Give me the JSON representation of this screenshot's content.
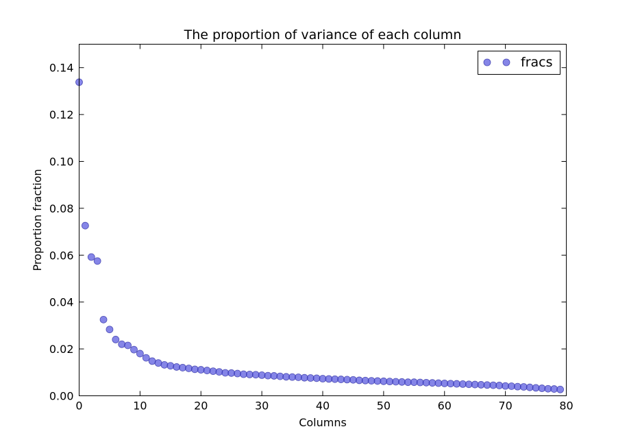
{
  "chart_data": {
    "type": "scatter",
    "title": "The proportion of variance of each column",
    "xlabel": "Columns",
    "ylabel": "Proportion fraction",
    "xlim": [
      0,
      80
    ],
    "ylim": [
      0,
      0.15
    ],
    "xticks": [
      0,
      10,
      20,
      30,
      40,
      50,
      60,
      70,
      80
    ],
    "yticks": [
      0.0,
      0.02,
      0.04,
      0.06,
      0.08,
      0.1,
      0.12,
      0.14
    ],
    "xtick_labels": [
      "0",
      "10",
      "20",
      "30",
      "40",
      "50",
      "60",
      "70",
      "80"
    ],
    "ytick_labels": [
      "0.00",
      "0.02",
      "0.04",
      "0.06",
      "0.08",
      "0.10",
      "0.12",
      "0.14"
    ],
    "grid": false,
    "legend_position": "top-right",
    "series": [
      {
        "name": "fracs",
        "color": "#4b4bdc",
        "x": [
          0,
          1,
          2,
          3,
          4,
          5,
          6,
          7,
          8,
          9,
          10,
          11,
          12,
          13,
          14,
          15,
          16,
          17,
          18,
          19,
          20,
          21,
          22,
          23,
          24,
          25,
          26,
          27,
          28,
          29,
          30,
          31,
          32,
          33,
          34,
          35,
          36,
          37,
          38,
          39,
          40,
          41,
          42,
          43,
          44,
          45,
          46,
          47,
          48,
          49,
          50,
          51,
          52,
          53,
          54,
          55,
          56,
          57,
          58,
          59,
          60,
          61,
          62,
          63,
          64,
          65,
          66,
          67,
          68,
          69,
          70,
          71,
          72,
          73,
          74,
          75,
          76,
          77,
          78,
          79
        ],
        "y": [
          0.1338,
          0.0726,
          0.0592,
          0.0575,
          0.0325,
          0.0283,
          0.024,
          0.022,
          0.0215,
          0.0197,
          0.018,
          0.0162,
          0.0148,
          0.014,
          0.0132,
          0.0128,
          0.0123,
          0.012,
          0.0117,
          0.0113,
          0.0111,
          0.0108,
          0.0105,
          0.0102,
          0.0098,
          0.0097,
          0.0095,
          0.0092,
          0.0091,
          0.009,
          0.0088,
          0.0086,
          0.0085,
          0.0083,
          0.0081,
          0.008,
          0.0079,
          0.0077,
          0.0076,
          0.0075,
          0.0073,
          0.0072,
          0.0071,
          0.007,
          0.0069,
          0.0068,
          0.0066,
          0.0065,
          0.0064,
          0.0063,
          0.0062,
          0.0061,
          0.006,
          0.0059,
          0.0058,
          0.0058,
          0.0057,
          0.0056,
          0.0055,
          0.0054,
          0.0053,
          0.0052,
          0.0051,
          0.005,
          0.0049,
          0.0048,
          0.0047,
          0.0046,
          0.0045,
          0.0044,
          0.0042,
          0.0041,
          0.0039,
          0.0038,
          0.0036,
          0.0034,
          0.0032,
          0.003,
          0.0029,
          0.0027
        ]
      }
    ]
  }
}
